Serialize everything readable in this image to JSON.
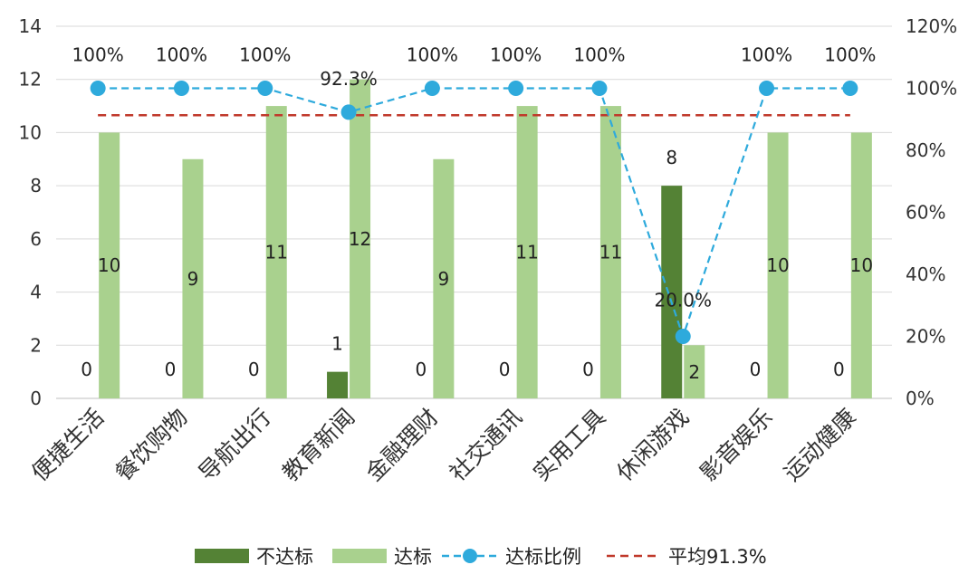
{
  "chart_data": {
    "type": "bar",
    "title": "",
    "categories": [
      "便捷生活",
      "餐饮购物",
      "导航出行",
      "教育新闻",
      "金融理财",
      "社交通讯",
      "实用工具",
      "休闲游戏",
      "影音娱乐",
      "运动健康"
    ],
    "series": [
      {
        "name": "不达标",
        "type": "bar",
        "axis": "left",
        "color": "#548235",
        "values": [
          0,
          0,
          0,
          1,
          0,
          0,
          0,
          8,
          0,
          0
        ]
      },
      {
        "name": "达标",
        "type": "bar",
        "axis": "left",
        "color": "#a9d18e",
        "values": [
          10,
          9,
          11,
          12,
          9,
          11,
          11,
          2,
          10,
          10
        ]
      },
      {
        "name": "达标比例",
        "type": "line",
        "axis": "right",
        "style": "dashed-with-markers",
        "color": "#2eaadc",
        "values": [
          100,
          100,
          100,
          92.3,
          100,
          100,
          100,
          20.0,
          100,
          100
        ],
        "labels": [
          "100%",
          "100%",
          "100%",
          "92.3%",
          "100%",
          "100%",
          "100%",
          "20.0%",
          "100%",
          "100%"
        ]
      },
      {
        "name": "平均91.3%",
        "type": "line",
        "axis": "right",
        "style": "dashed",
        "color": "#c0392b",
        "value": 91.3
      }
    ],
    "y_left": {
      "min": 0,
      "max": 14,
      "ticks": [
        "0",
        "2",
        "4",
        "6",
        "8",
        "10",
        "12",
        "14"
      ]
    },
    "y_right": {
      "min": 0,
      "max": 120,
      "ticks": [
        "0%",
        "20%",
        "40%",
        "60%",
        "80%",
        "100%",
        "120%"
      ]
    },
    "grid": true,
    "legend": "bottom"
  }
}
